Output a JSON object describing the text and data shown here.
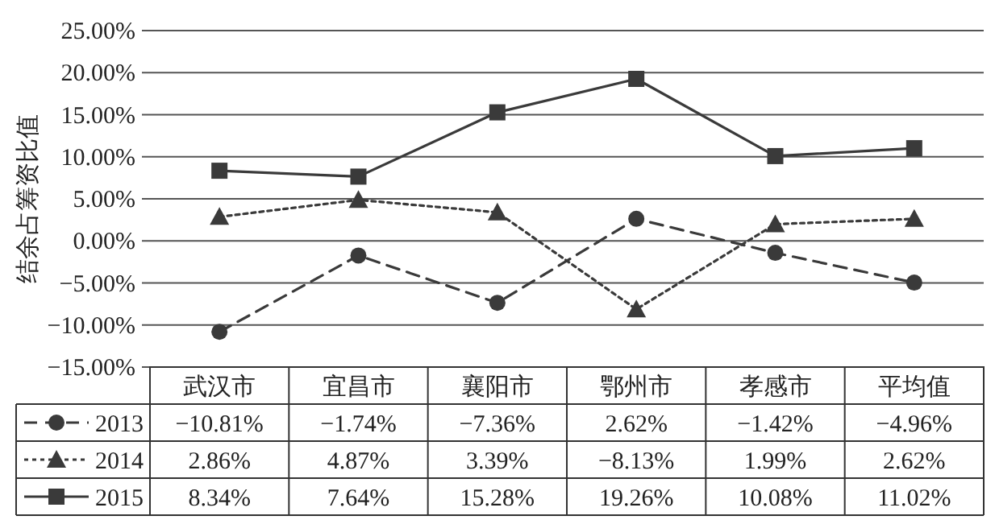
{
  "chart_data": {
    "type": "line",
    "ylabel": "结余占筹资比值",
    "categories": [
      "武汉市",
      "宜昌市",
      "襄阳市",
      "鄂州市",
      "孝感市",
      "平均值"
    ],
    "series": [
      {
        "name": "2013",
        "color": "#3a3a3a",
        "marker": "circle",
        "line_style": "dashed",
        "values": [
          -10.81,
          -1.74,
          -7.36,
          2.62,
          -1.42,
          -4.96
        ],
        "value_labels": [
          "−10.81%",
          "−1.74%",
          "−7.36%",
          "2.62%",
          "−1.42%",
          "−4.96%"
        ]
      },
      {
        "name": "2014",
        "color": "#3a3a3a",
        "marker": "triangle",
        "line_style": "dotted",
        "values": [
          2.86,
          4.87,
          3.39,
          -8.13,
          1.99,
          2.62
        ],
        "value_labels": [
          "2.86%",
          "4.87%",
          "3.39%",
          "−8.13%",
          "1.99%",
          "2.62%"
        ]
      },
      {
        "name": "2015",
        "color": "#3a3a3a",
        "marker": "square",
        "line_style": "solid",
        "values": [
          8.34,
          7.64,
          15.28,
          19.26,
          10.08,
          11.02
        ],
        "value_labels": [
          "8.34%",
          "7.64%",
          "15.28%",
          "19.26%",
          "10.08%",
          "11.02%"
        ]
      }
    ],
    "ylim": [
      -15,
      25
    ],
    "yticks": [
      {
        "value": -15,
        "label": "−15.00%"
      },
      {
        "value": -10,
        "label": "−10.00%"
      },
      {
        "value": -5,
        "label": "−5.00%"
      },
      {
        "value": 0,
        "label": "0.00%"
      },
      {
        "value": 5,
        "label": "5.00%"
      },
      {
        "value": 10,
        "label": "10.00%"
      },
      {
        "value": 15,
        "label": "15.00%"
      },
      {
        "value": 20,
        "label": "20.00%"
      },
      {
        "value": 25,
        "label": "25.00%"
      }
    ],
    "grid": "y",
    "legend": "bottom"
  }
}
